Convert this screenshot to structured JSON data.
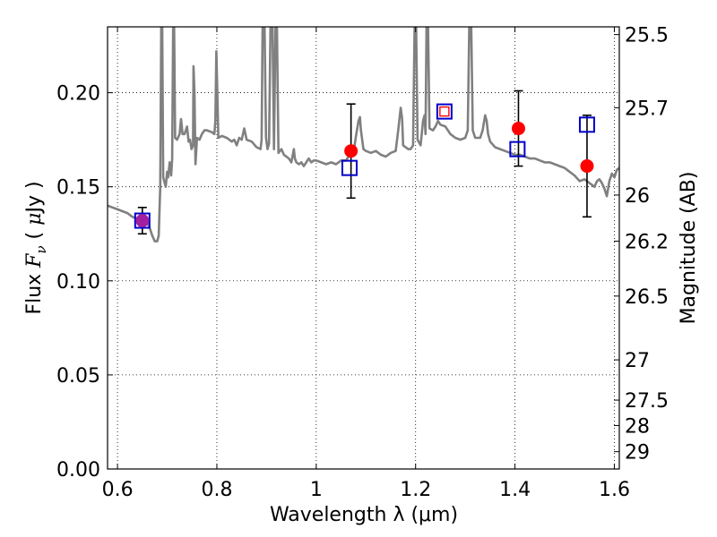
{
  "chart_data": {
    "type": "scatter",
    "xlabel": "Wavelength  λ (μm)",
    "ylabel": "Flux  F_ν  ( μJy )",
    "ylabel_parts": [
      "Flux  ",
      "F",
      "ν",
      "  (  ",
      "μ",
      "Jy )"
    ],
    "y2label": "Magnitude (AB)",
    "xlim": [
      0.58,
      1.61
    ],
    "ylim": [
      0.0,
      0.235
    ],
    "xticks": [
      0.6,
      0.8,
      1.0,
      1.2,
      1.4,
      1.6
    ],
    "xtick_labels": [
      "0.6",
      "0.8",
      "1",
      "1.2",
      "1.4",
      "1.6"
    ],
    "yticks": [
      0.0,
      0.05,
      0.1,
      0.15,
      0.2
    ],
    "ytick_labels": [
      "0.00",
      "0.05",
      "0.10",
      "0.15",
      "0.20"
    ],
    "y2ticks": [
      {
        "label": "25.5",
        "flux": 0.2309
      },
      {
        "label": "25.7",
        "flux": 0.192
      },
      {
        "label": "26",
        "flux": 0.1456
      },
      {
        "label": "26.2",
        "flux": 0.1211
      },
      {
        "label": "26.5",
        "flux": 0.0919
      },
      {
        "label": "27",
        "flux": 0.058
      },
      {
        "label": "27.5",
        "flux": 0.0366
      },
      {
        "label": "28",
        "flux": 0.0231
      },
      {
        "label": "29",
        "flux": 0.0092
      }
    ],
    "grid": true,
    "colors": {
      "template": "#808080",
      "observed": "#ff0000",
      "model": "#0000cc",
      "blended": "#a020a0",
      "errorbar": "#000000"
    },
    "series": [
      {
        "kind": "template_spectrum",
        "points": [
          [
            0.58,
            0.14
          ],
          [
            0.59,
            0.139
          ],
          [
            0.6,
            0.138
          ],
          [
            0.61,
            0.137
          ],
          [
            0.62,
            0.136
          ],
          [
            0.63,
            0.134
          ],
          [
            0.64,
            0.133
          ],
          [
            0.65,
            0.132
          ],
          [
            0.655,
            0.134
          ],
          [
            0.66,
            0.131
          ],
          [
            0.665,
            0.128
          ],
          [
            0.67,
            0.124
          ],
          [
            0.675,
            0.121
          ],
          [
            0.68,
            0.121
          ],
          [
            0.683,
            0.124
          ],
          [
            0.686,
            0.15
          ],
          [
            0.688,
            0.235
          ],
          [
            0.69,
            0.235
          ],
          [
            0.692,
            0.155
          ],
          [
            0.697,
            0.15
          ],
          [
            0.7,
            0.158
          ],
          [
            0.702,
            0.155
          ],
          [
            0.705,
            0.163
          ],
          [
            0.708,
            0.156
          ],
          [
            0.71,
            0.165
          ],
          [
            0.712,
            0.235
          ],
          [
            0.714,
            0.235
          ],
          [
            0.716,
            0.176
          ],
          [
            0.72,
            0.175
          ],
          [
            0.725,
            0.178
          ],
          [
            0.728,
            0.186
          ],
          [
            0.731,
            0.178
          ],
          [
            0.735,
            0.178
          ],
          [
            0.74,
            0.182
          ],
          [
            0.743,
            0.174
          ],
          [
            0.746,
            0.175
          ],
          [
            0.749,
            0.17
          ],
          [
            0.752,
            0.172
          ],
          [
            0.753,
            0.214
          ],
          [
            0.755,
            0.2
          ],
          [
            0.757,
            0.162
          ],
          [
            0.76,
            0.176
          ],
          [
            0.765,
            0.175
          ],
          [
            0.77,
            0.178
          ],
          [
            0.775,
            0.18
          ],
          [
            0.78,
            0.18
          ],
          [
            0.79,
            0.179
          ],
          [
            0.795,
            0.178
          ],
          [
            0.797,
            0.185
          ],
          [
            0.799,
            0.222
          ],
          [
            0.801,
            0.2
          ],
          [
            0.803,
            0.176
          ],
          [
            0.81,
            0.177
          ],
          [
            0.82,
            0.176
          ],
          [
            0.825,
            0.175
          ],
          [
            0.83,
            0.174
          ],
          [
            0.835,
            0.175
          ],
          [
            0.84,
            0.172
          ],
          [
            0.845,
            0.176
          ],
          [
            0.85,
            0.175
          ],
          [
            0.855,
            0.181
          ],
          [
            0.86,
            0.175
          ],
          [
            0.87,
            0.174
          ],
          [
            0.88,
            0.171
          ],
          [
            0.888,
            0.17
          ],
          [
            0.89,
            0.175
          ],
          [
            0.892,
            0.235
          ],
          [
            0.896,
            0.235
          ],
          [
            0.899,
            0.176
          ],
          [
            0.902,
            0.17
          ],
          [
            0.905,
            0.173
          ],
          [
            0.908,
            0.235
          ],
          [
            0.912,
            0.235
          ],
          [
            0.915,
            0.17
          ],
          [
            0.918,
            0.235
          ],
          [
            0.921,
            0.235
          ],
          [
            0.924,
            0.168
          ],
          [
            0.93,
            0.17
          ],
          [
            0.935,
            0.167
          ],
          [
            0.94,
            0.166
          ],
          [
            0.945,
            0.165
          ],
          [
            0.95,
            0.163
          ],
          [
            0.955,
            0.17
          ],
          [
            0.957,
            0.165
          ],
          [
            0.96,
            0.163
          ],
          [
            0.965,
            0.162
          ],
          [
            0.97,
            0.163
          ],
          [
            0.975,
            0.161
          ],
          [
            0.98,
            0.163
          ],
          [
            0.985,
            0.165
          ],
          [
            0.99,
            0.163
          ],
          [
            0.995,
            0.164
          ],
          [
            1.0,
            0.164
          ],
          [
            1.01,
            0.163
          ],
          [
            1.02,
            0.162
          ],
          [
            1.03,
            0.163
          ],
          [
            1.04,
            0.162
          ],
          [
            1.05,
            0.164
          ],
          [
            1.06,
            0.164
          ],
          [
            1.065,
            0.166
          ],
          [
            1.07,
            0.167
          ],
          [
            1.075,
            0.168
          ],
          [
            1.08,
            0.177
          ],
          [
            1.085,
            0.185
          ],
          [
            1.088,
            0.187
          ],
          [
            1.09,
            0.18
          ],
          [
            1.095,
            0.17
          ],
          [
            1.1,
            0.169
          ],
          [
            1.11,
            0.168
          ],
          [
            1.12,
            0.169
          ],
          [
            1.13,
            0.167
          ],
          [
            1.14,
            0.166
          ],
          [
            1.15,
            0.168
          ],
          [
            1.16,
            0.169
          ],
          [
            1.165,
            0.18
          ],
          [
            1.17,
            0.192
          ],
          [
            1.173,
            0.186
          ],
          [
            1.175,
            0.172
          ],
          [
            1.18,
            0.171
          ],
          [
            1.185,
            0.17
          ],
          [
            1.19,
            0.17
          ],
          [
            1.195,
            0.172
          ],
          [
            1.198,
            0.235
          ],
          [
            1.201,
            0.235
          ],
          [
            1.204,
            0.175
          ],
          [
            1.21,
            0.172
          ],
          [
            1.215,
            0.185
          ],
          [
            1.218,
            0.188
          ],
          [
            1.22,
            0.178
          ],
          [
            1.222,
            0.235
          ],
          [
            1.225,
            0.235
          ],
          [
            1.228,
            0.181
          ],
          [
            1.235,
            0.18
          ],
          [
            1.24,
            0.182
          ],
          [
            1.245,
            0.185
          ],
          [
            1.25,
            0.183
          ],
          [
            1.26,
            0.182
          ],
          [
            1.27,
            0.178
          ],
          [
            1.28,
            0.176
          ],
          [
            1.29,
            0.175
          ],
          [
            1.3,
            0.176
          ],
          [
            1.305,
            0.18
          ],
          [
            1.308,
            0.235
          ],
          [
            1.312,
            0.235
          ],
          [
            1.315,
            0.18
          ],
          [
            1.32,
            0.176
          ],
          [
            1.33,
            0.176
          ],
          [
            1.335,
            0.18
          ],
          [
            1.34,
            0.188
          ],
          [
            1.343,
            0.185
          ],
          [
            1.346,
            0.178
          ],
          [
            1.35,
            0.174
          ],
          [
            1.36,
            0.171
          ],
          [
            1.37,
            0.17
          ],
          [
            1.38,
            0.169
          ],
          [
            1.39,
            0.168
          ],
          [
            1.4,
            0.167
          ],
          [
            1.41,
            0.167
          ],
          [
            1.42,
            0.166
          ],
          [
            1.43,
            0.165
          ],
          [
            1.44,
            0.165
          ],
          [
            1.45,
            0.164
          ],
          [
            1.46,
            0.163
          ],
          [
            1.47,
            0.163
          ],
          [
            1.48,
            0.162
          ],
          [
            1.49,
            0.161
          ],
          [
            1.5,
            0.16
          ],
          [
            1.51,
            0.158
          ],
          [
            1.52,
            0.156
          ],
          [
            1.53,
            0.153
          ],
          [
            1.54,
            0.154
          ],
          [
            1.55,
            0.152
          ],
          [
            1.56,
            0.15
          ],
          [
            1.565,
            0.153
          ],
          [
            1.57,
            0.154
          ],
          [
            1.575,
            0.152
          ],
          [
            1.58,
            0.149
          ],
          [
            1.585,
            0.145
          ],
          [
            1.59,
            0.153
          ],
          [
            1.595,
            0.157
          ],
          [
            1.6,
            0.155
          ],
          [
            1.605,
            0.159
          ],
          [
            1.61,
            0.16
          ]
        ]
      },
      {
        "kind": "observed_points",
        "points": [
          {
            "x": 0.65,
            "y": 0.132,
            "err": 0.007,
            "marker": "circle-blended"
          },
          {
            "x": 1.07,
            "y": 0.169,
            "err": 0.025,
            "marker": "circle"
          },
          {
            "x": 1.407,
            "y": 0.181,
            "err": 0.02,
            "marker": "circle"
          },
          {
            "x": 1.545,
            "y": 0.161,
            "err": 0.027,
            "marker": "circle"
          }
        ]
      },
      {
        "kind": "model_points",
        "points": [
          {
            "x": 0.65,
            "y": 0.132,
            "marker": "square"
          },
          {
            "x": 1.067,
            "y": 0.16,
            "marker": "square"
          },
          {
            "x": 1.258,
            "y": 0.19,
            "marker": "square-red-inner"
          },
          {
            "x": 1.405,
            "y": 0.17,
            "marker": "square"
          },
          {
            "x": 1.545,
            "y": 0.183,
            "marker": "square"
          }
        ]
      }
    ]
  }
}
